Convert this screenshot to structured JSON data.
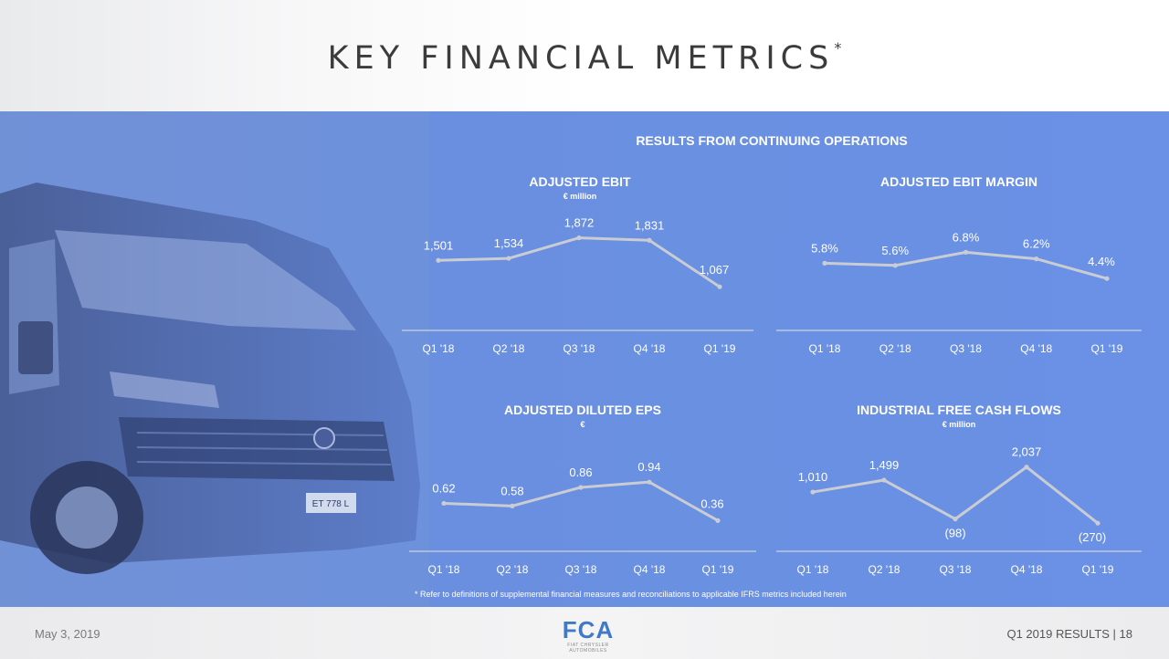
{
  "header": {
    "title": "KEY FINANCIAL METRICS",
    "title_mark": "*"
  },
  "section_title": "RESULTS FROM CONTINUING OPERATIONS",
  "footnote": "* Refer to definitions of supplemental financial measures and reconciliations to applicable IFRS metrics included herein",
  "footer": {
    "date": "May 3, 2019",
    "logo_text": "FCA",
    "logo_sub": "FIAT CHRYSLER AUTOMOBILES",
    "results": "Q1 2019 RESULTS | 18"
  },
  "van": {
    "plate": "ET 778 L"
  },
  "colors": {
    "band": "#6a8fe0",
    "line": "#c9ccd3",
    "axis": "#cdd2dc",
    "text": "#ffffff"
  },
  "chart_data": [
    {
      "type": "line",
      "title": "ADJUSTED EBIT",
      "subtitle": "€ million",
      "categories": [
        "Q1 '18",
        "Q2 '18",
        "Q3 '18",
        "Q4 '18",
        "Q1 '19"
      ],
      "values": [
        1501,
        1534,
        1872,
        1831,
        1067
      ],
      "value_labels": [
        "1,501",
        "1,534",
        "1,872",
        "1,831",
        "1,067"
      ],
      "ylim": [
        800,
        2000
      ]
    },
    {
      "type": "line",
      "title": "ADJUSTED EBIT MARGIN",
      "subtitle": "",
      "categories": [
        "Q1 '18",
        "Q2 '18",
        "Q3 '18",
        "Q4 '18",
        "Q1 '19"
      ],
      "values": [
        5.8,
        5.6,
        6.8,
        6.2,
        4.4
      ],
      "value_labels": [
        "5.8%",
        "5.6%",
        "6.8%",
        "6.2%",
        "4.4%"
      ],
      "ylim": [
        3.0,
        8.0
      ]
    },
    {
      "type": "line",
      "title": "ADJUSTED DILUTED EPS",
      "subtitle": "€",
      "categories": [
        "Q1 '18",
        "Q2 '18",
        "Q3 '18",
        "Q4 '18",
        "Q1 '19"
      ],
      "values": [
        0.62,
        0.58,
        0.86,
        0.94,
        0.36
      ],
      "value_labels": [
        "0.62",
        "0.58",
        "0.86",
        "0.94",
        "0.36"
      ],
      "ylim": [
        0.2,
        1.3
      ]
    },
    {
      "type": "line",
      "title": "INDUSTRIAL FREE CASH FLOWS",
      "subtitle": "€ million",
      "categories": [
        "Q1 '18",
        "Q2 '18",
        "Q3 '18",
        "Q4 '18",
        "Q1 '19"
      ],
      "values": [
        1010,
        1499,
        -98,
        2037,
        -270
      ],
      "value_labels": [
        "1,010",
        "1,499",
        "(98)",
        "2,037",
        "(270)"
      ],
      "ylim": [
        -600,
        2400
      ]
    }
  ]
}
